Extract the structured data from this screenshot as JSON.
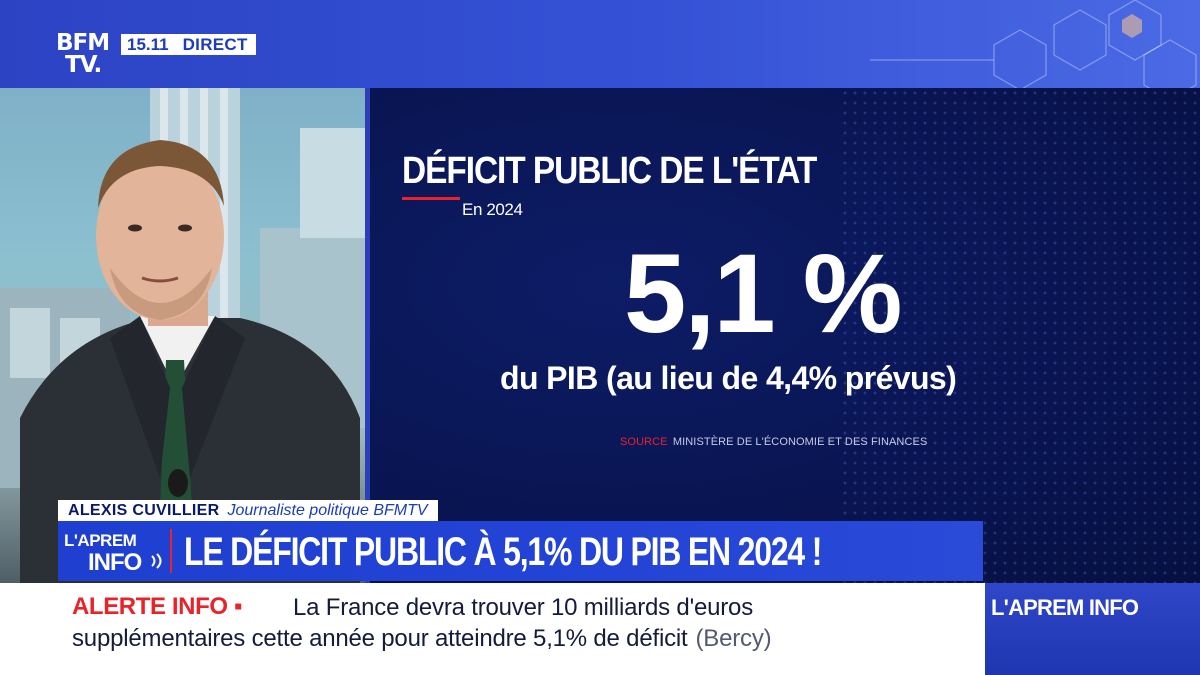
{
  "channel": {
    "logo_line1": "BFM",
    "logo_line2": "TV.",
    "time": "15.11",
    "live_label": "DIRECT"
  },
  "graphic": {
    "headline": "DÉFICIT PUBLIC DE L'ÉTAT",
    "period": "En 2024",
    "big_value": "5,1 %",
    "sub_value": "du PIB (au lieu de 4,4% prévus)",
    "source_key": "SOURCE",
    "source_value": "MINISTÈRE DE L'ÉCONOMIE ET DES FINANCES"
  },
  "guest": {
    "name": "ALEXIS CUVILLIER",
    "role": "Journaliste politique BFMTV"
  },
  "show": {
    "logo_line1": "L'APREM",
    "logo_line2": "INFO",
    "title": "LE DÉFICIT PUBLIC À 5,1% DU PIB EN 2024 !"
  },
  "ticker": {
    "alert_label": "ALERTE INFO ▪",
    "line1": "La France devra trouver 10 milliards d'euros",
    "line2": "supplémentaires cette année pour atteindre 5,1% de déficit",
    "source": "(Bercy)"
  },
  "corner": {
    "label": "L'APREM INFO"
  },
  "colors": {
    "brand_blue": "#2344d6",
    "panel_navy": "#091552",
    "alert_red": "#e8232a",
    "white": "#ffffff"
  }
}
